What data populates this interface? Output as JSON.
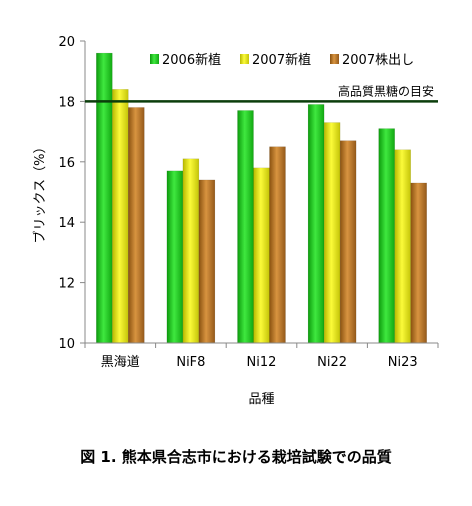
{
  "chart_data": {
    "type": "bar",
    "categories": [
      "黒海道",
      "NiF8",
      "Ni12",
      "Ni22",
      "Ni23"
    ],
    "series": [
      {
        "name": "2006新植",
        "values": [
          19.6,
          15.7,
          17.7,
          17.9,
          17.1
        ],
        "color": "#19c619"
      },
      {
        "name": "2007新植",
        "values": [
          18.4,
          16.1,
          15.8,
          17.3,
          16.4
        ],
        "color": "#e0e014"
      },
      {
        "name": "2007株出し",
        "values": [
          17.8,
          15.4,
          16.5,
          16.7,
          15.3
        ],
        "color": "#b8741f"
      }
    ],
    "xlabel": "品種",
    "ylabel": "ブリックス（%）",
    "ylim": [
      10,
      20
    ],
    "yticks": [
      10,
      12,
      14,
      16,
      18,
      20
    ],
    "grid": false,
    "legend_position": "top-right",
    "reference_line": {
      "value": 18,
      "label": "高品質黒糖の目安",
      "color": "#0b3d0b"
    }
  },
  "caption": "図 1. 熊本県合志市における栽培試験での品質"
}
